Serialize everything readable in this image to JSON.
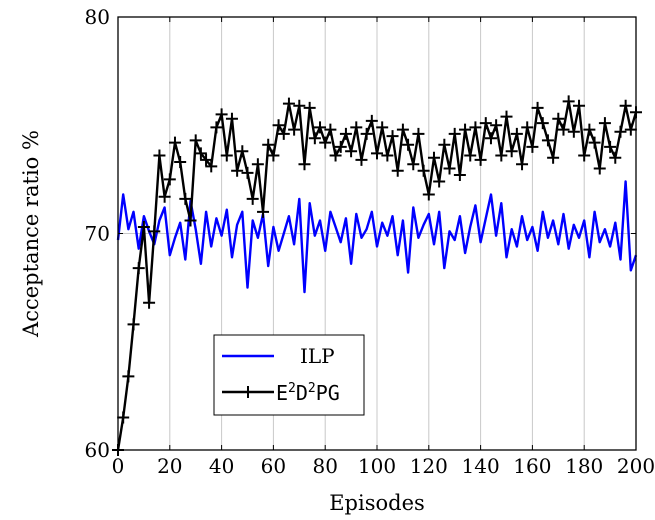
{
  "chart_data": {
    "type": "line",
    "xlabel": "Episodes",
    "ylabel": "Acceptance ratio %",
    "xlim": [
      0,
      200
    ],
    "ylim": [
      60,
      80
    ],
    "x_ticks": [
      0,
      20,
      40,
      60,
      80,
      100,
      120,
      140,
      160,
      180,
      200
    ],
    "y_ticks": [
      60,
      70,
      80
    ],
    "grid": "vertical",
    "legend_position": "bottom-center",
    "series": [
      {
        "name": "ILP",
        "color": "#0000ff",
        "marker": "none",
        "x": [
          0,
          2,
          4,
          6,
          8,
          10,
          12,
          14,
          16,
          18,
          20,
          22,
          24,
          26,
          28,
          30,
          32,
          34,
          36,
          38,
          40,
          42,
          44,
          46,
          48,
          50,
          52,
          54,
          56,
          58,
          60,
          62,
          64,
          66,
          68,
          70,
          72,
          74,
          76,
          78,
          80,
          82,
          84,
          86,
          88,
          90,
          92,
          94,
          96,
          98,
          100,
          102,
          104,
          106,
          108,
          110,
          112,
          114,
          116,
          118,
          120,
          122,
          124,
          126,
          128,
          130,
          132,
          134,
          136,
          138,
          140,
          142,
          144,
          146,
          148,
          150,
          152,
          154,
          156,
          158,
          160,
          162,
          164,
          166,
          168,
          170,
          172,
          174,
          176,
          178,
          180,
          182,
          184,
          186,
          188,
          190,
          192,
          194,
          196,
          198,
          200
        ],
        "y": [
          69.7,
          71.8,
          70.2,
          71.0,
          69.3,
          70.8,
          70.1,
          69.5,
          70.6,
          71.2,
          69.0,
          69.8,
          70.5,
          68.8,
          71.5,
          70.2,
          68.6,
          71.0,
          69.4,
          70.7,
          69.9,
          71.1,
          68.9,
          70.4,
          71.0,
          67.5,
          70.6,
          69.8,
          70.9,
          68.5,
          70.3,
          69.2,
          70.0,
          70.8,
          69.5,
          71.6,
          67.3,
          71.4,
          69.9,
          70.6,
          69.2,
          71.0,
          70.3,
          69.6,
          70.7,
          68.6,
          70.9,
          69.8,
          70.2,
          71.0,
          69.4,
          70.5,
          69.9,
          70.8,
          69.0,
          70.6,
          68.2,
          71.2,
          69.8,
          70.4,
          70.9,
          69.5,
          71.0,
          68.4,
          70.1,
          69.7,
          70.8,
          69.1,
          70.3,
          71.3,
          69.6,
          70.7,
          71.8,
          69.9,
          71.4,
          68.9,
          70.2,
          69.4,
          70.8,
          69.7,
          70.3,
          69.2,
          71.0,
          69.8,
          70.6,
          69.5,
          70.9,
          69.3,
          70.4,
          69.8,
          70.6,
          68.9,
          71.0,
          69.6,
          70.2,
          69.4,
          70.5,
          68.8,
          72.4,
          68.3,
          69.0
        ],
        "y_note": ""
      },
      {
        "name": "E2D2PG",
        "color": "#000000",
        "marker": "+",
        "x": [
          0,
          2,
          4,
          6,
          8,
          10,
          12,
          14,
          16,
          18,
          20,
          22,
          24,
          26,
          28,
          30,
          32,
          34,
          36,
          38,
          40,
          42,
          44,
          46,
          48,
          50,
          52,
          54,
          56,
          58,
          60,
          62,
          64,
          66,
          68,
          70,
          72,
          74,
          76,
          78,
          80,
          82,
          84,
          86,
          88,
          90,
          92,
          94,
          96,
          98,
          100,
          102,
          104,
          106,
          108,
          110,
          112,
          114,
          116,
          118,
          120,
          122,
          124,
          126,
          128,
          130,
          132,
          134,
          136,
          138,
          140,
          142,
          144,
          146,
          148,
          150,
          152,
          154,
          156,
          158,
          160,
          162,
          164,
          166,
          168,
          170,
          172,
          174,
          176,
          178,
          180,
          182,
          184,
          186,
          188,
          190,
          192,
          194,
          196,
          198,
          200
        ],
        "y": [
          60.0,
          61.5,
          63.4,
          65.8,
          68.4,
          70.3,
          66.8,
          70.1,
          73.6,
          71.7,
          72.5,
          74.2,
          73.3,
          71.6,
          70.6,
          74.3,
          73.7,
          73.4,
          73.1,
          74.9,
          75.5,
          73.6,
          75.3,
          72.9,
          73.8,
          72.8,
          71.6,
          73.2,
          71.0,
          74.1,
          73.6,
          75.0,
          74.6,
          76.0,
          74.8,
          75.9,
          73.2,
          75.8,
          74.4,
          74.9,
          74.2,
          74.8,
          73.6,
          74.0,
          74.6,
          73.8,
          74.9,
          73.4,
          74.6,
          75.2,
          73.7,
          74.9,
          73.6,
          74.5,
          72.9,
          74.8,
          74.1,
          73.2,
          74.6,
          72.9,
          71.8,
          73.5,
          72.4,
          74.1,
          73.0,
          74.6,
          72.7,
          74.8,
          73.6,
          74.9,
          73.4,
          75.1,
          74.4,
          75.0,
          73.6,
          75.4,
          73.8,
          74.6,
          73.2,
          74.9,
          74.0,
          75.8,
          75.1,
          74.3,
          73.5,
          75.3,
          74.8,
          76.1,
          74.7,
          75.9,
          73.6,
          74.8,
          74.2,
          73.0,
          75.1,
          74.0,
          73.5,
          74.7,
          75.9,
          74.8,
          75.6
        ]
      }
    ]
  },
  "legend": {
    "ilp_label": "ILP",
    "e2d2pg_label": {
      "base1": "E",
      "sup1": "2",
      "base2": "D",
      "sup2": "2",
      "base3": "PG"
    }
  }
}
